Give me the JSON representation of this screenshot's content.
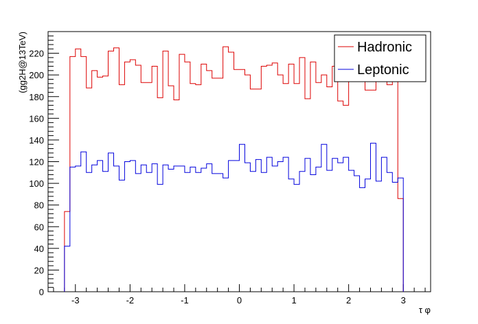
{
  "chart_data": {
    "type": "histogram",
    "title": "",
    "xlabel": "τ φ",
    "ylabel": "(gg2H@13TeV)",
    "xlim": [
      -3.5,
      3.5
    ],
    "ylim": [
      0,
      240
    ],
    "x_ticks": [
      "-3",
      "-2",
      "-1",
      "0",
      "1",
      "2",
      "3"
    ],
    "y_ticks": [
      "0",
      "20",
      "40",
      "60",
      "80",
      "100",
      "120",
      "140",
      "160",
      "180",
      "200",
      "220"
    ],
    "bin_width": 0.1,
    "bin_start": -3.2,
    "grid": false,
    "legend_position": "top-right",
    "series": [
      {
        "name": "Hadronic",
        "color": "#dd0000",
        "values": [
          74,
          217,
          224,
          217,
          188,
          204,
          198,
          199,
          222,
          225,
          191,
          212,
          214,
          209,
          193,
          193,
          208,
          179,
          222,
          190,
          177,
          219,
          212,
          192,
          191,
          210,
          204,
          197,
          197,
          226,
          221,
          205,
          205,
          200,
          187,
          187,
          208,
          209,
          211,
          200,
          192,
          210,
          192,
          216,
          178,
          212,
          193,
          200,
          189,
          208,
          176,
          172,
          203,
          204,
          209,
          186,
          186,
          198,
          198,
          191,
          211,
          86
        ]
      },
      {
        "name": "Leptonic",
        "color": "#0000dd",
        "values": [
          42,
          115,
          116,
          129,
          110,
          117,
          121,
          111,
          128,
          116,
          103,
          120,
          121,
          109,
          117,
          110,
          118,
          99,
          117,
          113,
          116,
          116,
          110,
          115,
          110,
          114,
          118,
          109,
          109,
          105,
          121,
          121,
          136,
          119,
          111,
          122,
          110,
          124,
          116,
          120,
          124,
          104,
          99,
          111,
          123,
          108,
          115,
          136,
          112,
          123,
          119,
          124,
          112,
          107,
          96,
          104,
          137,
          102,
          124,
          110,
          101,
          105
        ]
      }
    ]
  }
}
